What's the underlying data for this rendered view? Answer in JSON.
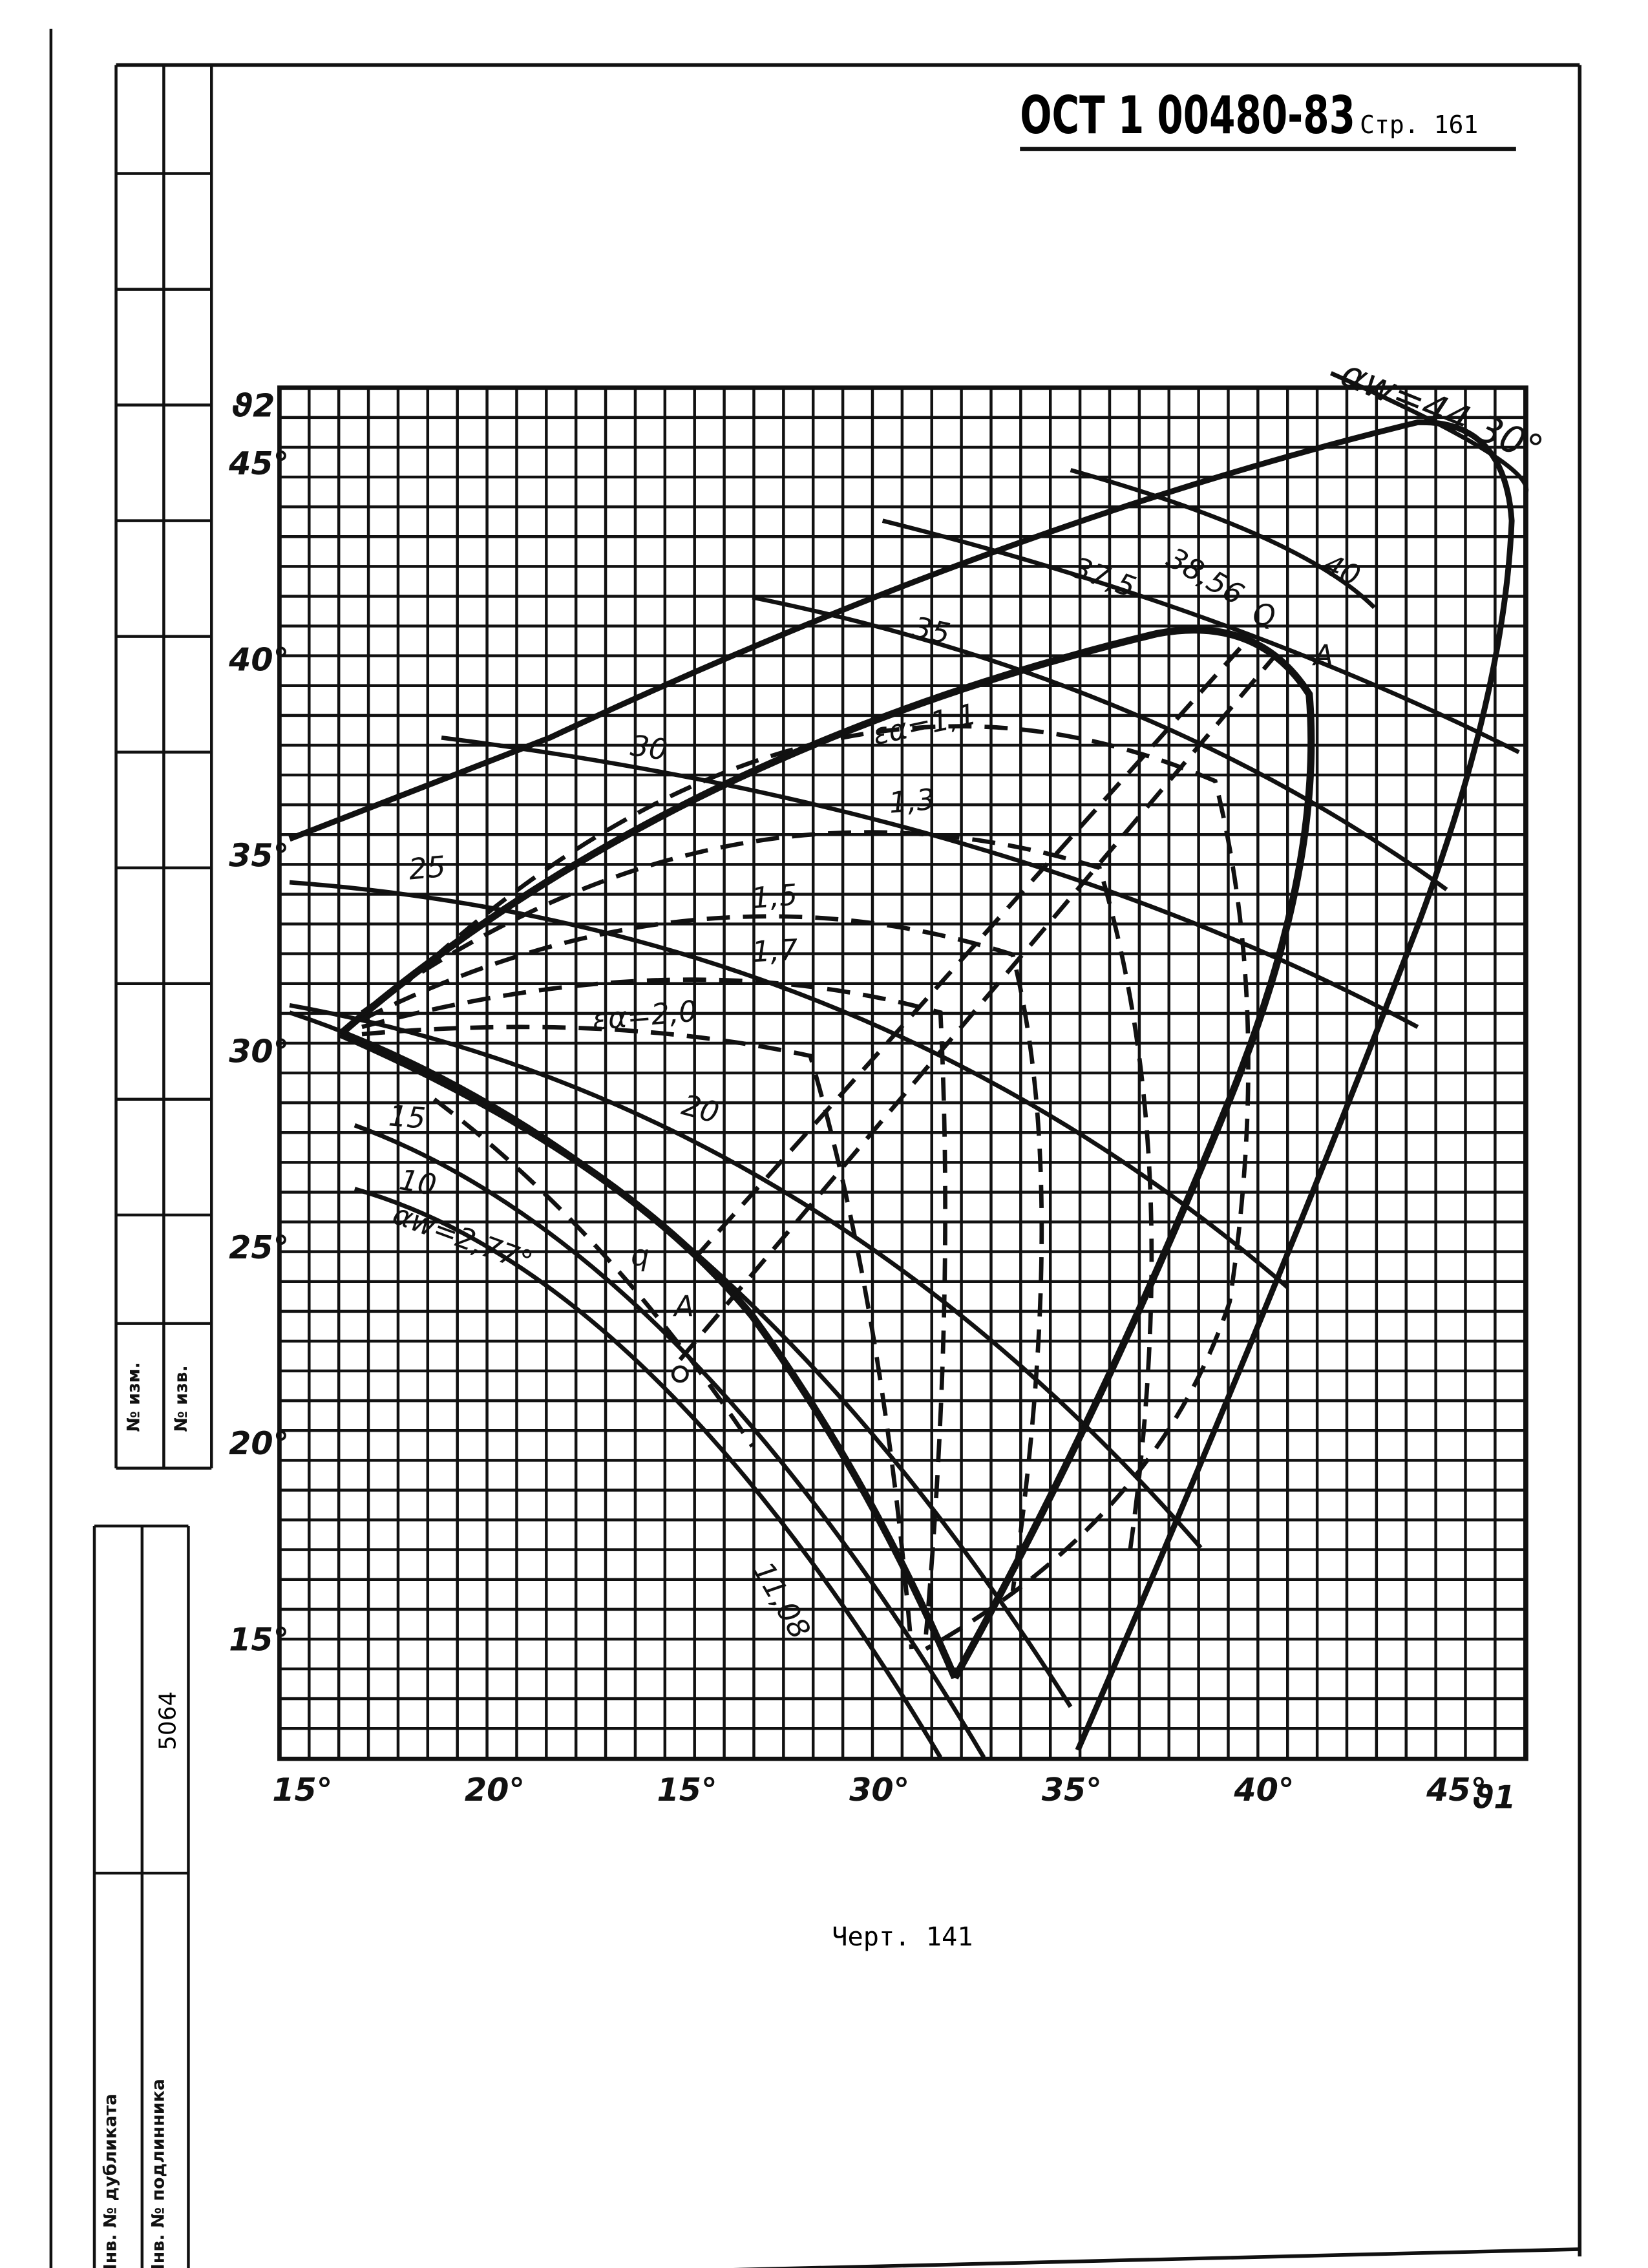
{
  "header": {
    "title": "ОСТ 1 00480-83",
    "page": "Стр. 161"
  },
  "figure": {
    "y_axis_label": "ϑ2",
    "x_axis_label": "ϑ1",
    "y_ticks": [
      "45°",
      "40°",
      "35°",
      "30°",
      "25°",
      "20°",
      "15°"
    ],
    "x_ticks": [
      "15°",
      "20°",
      "15°",
      "30°",
      "35°",
      "40°",
      "45°"
    ],
    "curve_labels": [
      "αw=44,30°",
      "40",
      "38,56",
      "37,5",
      "35",
      "30",
      "25",
      "20",
      "15",
      "10",
      "αw=2,77°",
      "11,08",
      "εα=1,1",
      "1,3",
      "1,5",
      "1,7",
      "εα=2,0"
    ],
    "point_labels": [
      "Q",
      "A",
      "q",
      "A"
    ]
  },
  "caption": "Черт. 141",
  "sidebar": {
    "change_no": "№ изм.",
    "notice_no": "№ изв.",
    "number": "5064",
    "dup_inv": "Инв. № дубликата",
    "orig_inv": "Инв. № подлинника"
  }
}
